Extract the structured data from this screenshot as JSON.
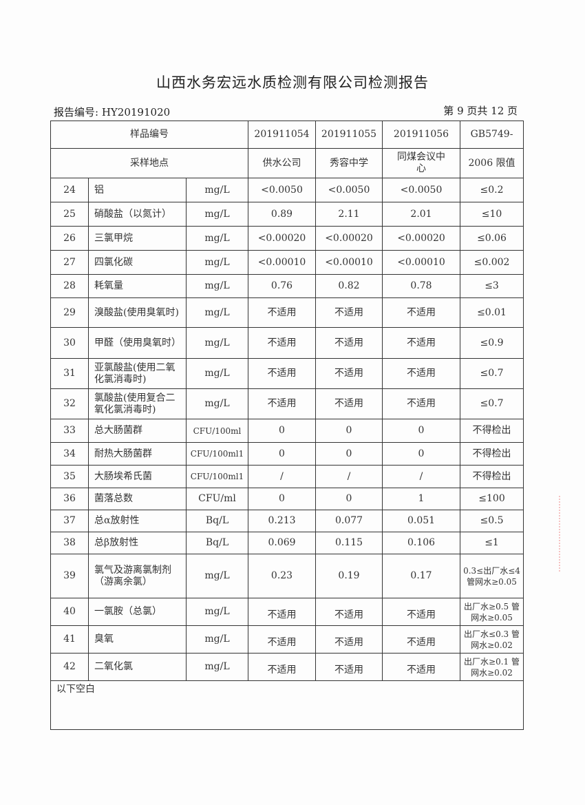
{
  "title": "山西水务宏远水质检测有限公司检测报告",
  "report_no": "报告编号: HY20191020",
  "page_no": "第 9 页共 12 页",
  "header": {
    "sample_no_label": "样品编号",
    "location_label": "采样地点",
    "samples": [
      "201911054",
      "201911055",
      "201911056"
    ],
    "locations": [
      "供水公司",
      "秀容中学",
      "同煤会议中心"
    ],
    "limit_label_1": "GB5749-",
    "limit_label_2": "2006 限值"
  },
  "rows": [
    [
      "24",
      "铝",
      "mg/L",
      "<0.0050",
      "<0.0050",
      "<0.0050",
      "≤0.2"
    ],
    [
      "25",
      "硝酸盐（以氮计）",
      "mg/L",
      "0.89",
      "2.11",
      "2.01",
      "≤10"
    ],
    [
      "26",
      "三氯甲烷",
      "mg/L",
      "<0.00020",
      "<0.00020",
      "<0.00020",
      "≤0.06"
    ],
    [
      "27",
      "四氯化碳",
      "mg/L",
      "<0.00010",
      "<0.00010",
      "<0.00010",
      "≤0.002"
    ],
    [
      "28",
      "耗氧量",
      "mg/L",
      "0.76",
      "0.82",
      "0.78",
      "≤3"
    ],
    [
      "29",
      "溴酸盐(使用臭氧时)",
      "mg/L",
      "不适用",
      "不适用",
      "不适用",
      "≤0.01"
    ],
    [
      "30",
      "甲醛（使用臭氧时）",
      "mg/L",
      "不适用",
      "不适用",
      "不适用",
      "≤0.9"
    ],
    [
      "31",
      "亚氯酸盐(使用二氧化氯消毒时)",
      "mg/L",
      "不适用",
      "不适用",
      "不适用",
      "≤0.7"
    ],
    [
      "32",
      "氯酸盐(使用复合二氧化氯消毒时)",
      "mg/L",
      "不适用",
      "不适用",
      "不适用",
      "≤0.7"
    ],
    [
      "33",
      "总大肠菌群",
      "CFU/100ml",
      "0",
      "0",
      "0",
      "不得检出"
    ],
    [
      "34",
      "耐热大肠菌群",
      "CFU/100ml1",
      "0",
      "0",
      "0",
      "不得检出"
    ],
    [
      "35",
      "大肠埃希氏菌",
      "CFU/100ml1",
      "/",
      "/",
      "/",
      "不得检出"
    ],
    [
      "36",
      "菌落总数",
      "CFU/ml",
      "0",
      "0",
      "1",
      "≤100"
    ],
    [
      "37",
      "总α放射性",
      "Bq/L",
      "0.213",
      "0.077",
      "0.051",
      "≤0.5"
    ],
    [
      "38",
      "总β放射性",
      "Bq/L",
      "0.069",
      "0.115",
      "0.106",
      "≤1"
    ],
    [
      "39",
      "氯气及游离氯制剂（游离余氯）",
      "mg/L",
      "0.23",
      "0.19",
      "0.17",
      "0.3≤出厂水≤4 管网水≥0.05"
    ],
    [
      "40",
      "一氯胺（总氯）",
      "mg/L",
      "不适用",
      "不适用",
      "不适用",
      "出厂水≥0.5 管网水≥0.05"
    ],
    [
      "41",
      "臭氧",
      "mg/L",
      "不适用",
      "不适用",
      "不适用",
      "出厂水≤0.3 管网水≥0.02"
    ],
    [
      "42",
      "二氧化氯",
      "mg/L",
      "不适用",
      "不适用",
      "不适用",
      "出厂水≥0.1 管网水≥0.02"
    ]
  ],
  "footer": "以下空白"
}
